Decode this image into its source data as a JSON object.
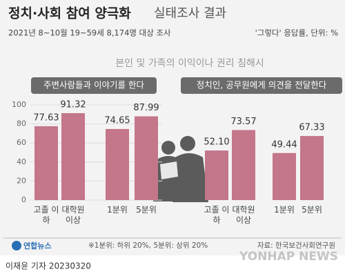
{
  "header": {
    "title": "정치·사회 참여 양극화",
    "title_rest": "실태조사 결과",
    "subtitle": "2021년 8~10월 19~59세 8,174명 대상 조사",
    "unit_note": "'그렇다' 응답률, 단위: %",
    "section": "본인 및 가족의 이익이나 권리 침해시"
  },
  "chart_data": [
    {
      "type": "bar",
      "title": "주변사람들과 이야기를 한다",
      "categories": [
        "고졸 이하",
        "대학원 이상",
        "1분위",
        "5분위"
      ],
      "values": [
        77.63,
        91.32,
        74.65,
        87.99
      ],
      "value_labels": [
        "77.63",
        "91.32",
        "74.65",
        "87.99"
      ],
      "color": "#c4768a",
      "ylim": [
        0,
        100
      ],
      "yticks": [
        0,
        20,
        40,
        60,
        80,
        100
      ],
      "grid": true
    },
    {
      "type": "bar",
      "title": "정치인, 공무원에게 의견을 전달한다",
      "categories": [
        "고졸 이하",
        "대학원 이상",
        "1분위",
        "5분위"
      ],
      "values": [
        52.1,
        73.57,
        49.44,
        67.33
      ],
      "value_labels": [
        "52.10",
        "73.57",
        "49.44",
        "67.33"
      ],
      "color": "#c4768a",
      "ylim": [
        0,
        100
      ]
    }
  ],
  "footer": {
    "logo": "연합뉴스",
    "note": "※1분위: 하위 20%, 5분위: 상위 20%",
    "source": "자료: 한국보건사회연구원",
    "byline": "이재윤 기자  20230320",
    "watermark": "YONHAP NEWS"
  }
}
